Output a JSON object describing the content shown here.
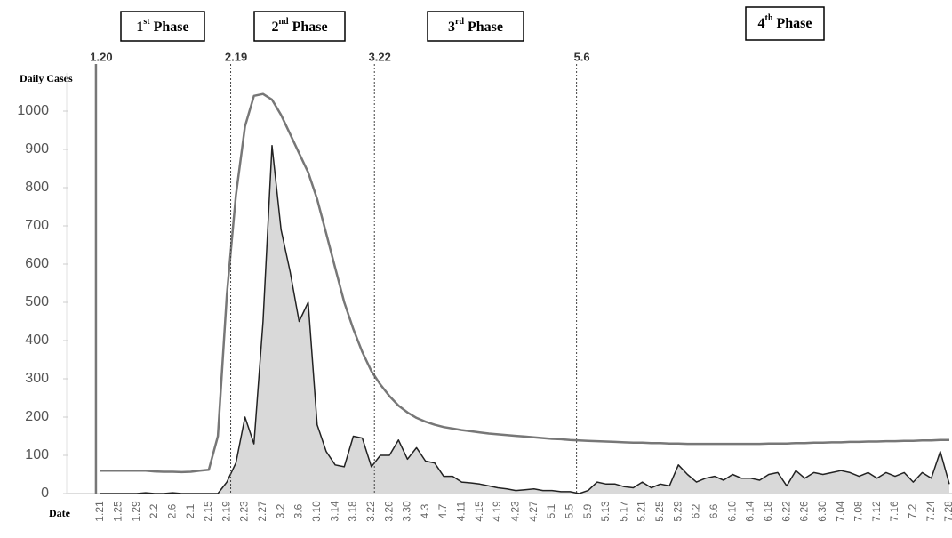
{
  "chart_data": {
    "type": "area",
    "y_label": "Daily Cases",
    "x_label": "Date",
    "phases": [
      {
        "ord": "1",
        "sup": "st",
        "word": "Phase"
      },
      {
        "ord": "2",
        "sup": "nd",
        "word": "Phase"
      },
      {
        "ord": "3",
        "sup": "rd",
        "word": "Phase"
      },
      {
        "ord": "4",
        "sup": "th",
        "word": "Phase"
      }
    ],
    "phase_lines": [
      {
        "label": "1.20",
        "style": "solid"
      },
      {
        "label": "2.19",
        "style": "dotted"
      },
      {
        "label": "3.22",
        "style": "dotted"
      },
      {
        "label": "5.6",
        "style": "dotted"
      }
    ],
    "categories": [
      "1.21",
      null,
      "1.25",
      null,
      "1.29",
      null,
      "2.2",
      null,
      "2.6",
      null,
      "2.1",
      null,
      "2.15",
      null,
      "2.19",
      null,
      "2.23",
      null,
      "2.27",
      null,
      "3.2",
      null,
      "3.6",
      null,
      "3.10",
      null,
      "3.14",
      null,
      "3.18",
      null,
      "3.22",
      null,
      "3.26",
      null,
      "3.30",
      null,
      "4.3",
      null,
      "4.7",
      null,
      "4.11",
      null,
      "4.15",
      null,
      "4.19",
      null,
      "4.23",
      null,
      "4.27",
      null,
      "5.1",
      null,
      "5.5",
      null,
      "5.9",
      null,
      "5.13",
      null,
      "5.17",
      null,
      "5.21",
      null,
      "5.25",
      null,
      "5.29",
      null,
      "6.2",
      null,
      "6.6",
      null,
      "6.10",
      null,
      "6.14",
      null,
      "6.18",
      null,
      "6.22",
      null,
      "6.26",
      null,
      "6.30",
      null,
      "7.04",
      null,
      "7.08",
      null,
      "7.12",
      null,
      "7.16",
      null,
      "7.2",
      null,
      "7.24",
      null,
      "7.28"
    ],
    "series": [
      {
        "color": "#222222",
        "fill": "#d9d9d9",
        "values": [
          0,
          0,
          0,
          0,
          0,
          2,
          0,
          0,
          2,
          0,
          0,
          0,
          0,
          0,
          30,
          80,
          200,
          130,
          450,
          910,
          690,
          580,
          450,
          500,
          180,
          110,
          75,
          70,
          150,
          145,
          70,
          100,
          100,
          140,
          90,
          120,
          85,
          80,
          45,
          45,
          30,
          28,
          25,
          20,
          15,
          12,
          8,
          10,
          12,
          8,
          8,
          5,
          5,
          0,
          8,
          30,
          25,
          25,
          18,
          15,
          30,
          15,
          25,
          20,
          75,
          50,
          30,
          40,
          45,
          35,
          50,
          40,
          40,
          35,
          50,
          55,
          20,
          60,
          40,
          55,
          50,
          55,
          60,
          55,
          45,
          55,
          40,
          55,
          45,
          55,
          30,
          55,
          40,
          110,
          25
        ]
      },
      {
        "color": "#777777",
        "values": [
          60,
          60,
          60,
          60,
          60,
          60,
          58,
          57,
          57,
          56,
          57,
          60,
          62,
          150,
          520,
          780,
          960,
          1040,
          1045,
          1030,
          990,
          940,
          890,
          840,
          770,
          680,
          590,
          500,
          430,
          370,
          320,
          285,
          255,
          230,
          212,
          198,
          188,
          180,
          174,
          170,
          166,
          163,
          160,
          157,
          155,
          153,
          151,
          149,
          147,
          145,
          143,
          142,
          140,
          139,
          138,
          137,
          136,
          135,
          134,
          133,
          133,
          132,
          132,
          131,
          131,
          130,
          130,
          130,
          130,
          130,
          130,
          130,
          130,
          130,
          131,
          131,
          131,
          132,
          132,
          133,
          133,
          134,
          134,
          135,
          135,
          136,
          136,
          137,
          137,
          138,
          138,
          139,
          139,
          140,
          140
        ]
      }
    ],
    "ylim": [
      0,
      1100
    ],
    "yticks": [
      0,
      100,
      200,
      300,
      400,
      500,
      600,
      700,
      800,
      900,
      1000
    ]
  }
}
